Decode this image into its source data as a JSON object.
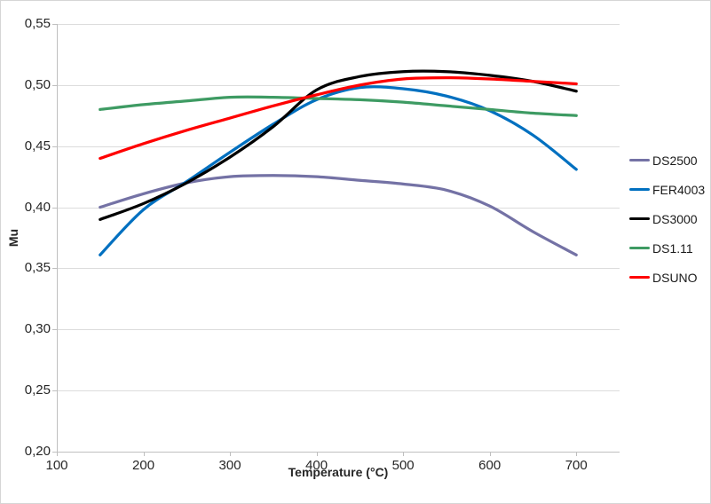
{
  "window": {
    "background": "#ffffff",
    "border_color": "#d6d6d6"
  },
  "colors": {
    "gridline": "#dcdcdc",
    "axis_line": "#bfbfbf",
    "tick_mark": "#bfbfbf",
    "tick_text": "#262626",
    "legend_text": "#1a1a1a"
  },
  "chart_data": {
    "type": "line",
    "xlabel": "Temperature (°C)",
    "ylabel": "Mu",
    "xlim": [
      100,
      750
    ],
    "ylim": [
      0.2,
      0.55
    ],
    "x_ticks": [
      100,
      200,
      300,
      400,
      500,
      600,
      700
    ],
    "y_ticks": [
      0.2,
      0.25,
      0.3,
      0.35,
      0.4,
      0.45,
      0.5,
      0.55
    ],
    "y_tick_labels": [
      "0,20",
      "0,25",
      "0,30",
      "0,35",
      "0,40",
      "0,45",
      "0,50",
      "0,55"
    ],
    "decimal_separator": ",",
    "grid": true,
    "legend_position": "right",
    "line_width": 3.25,
    "smooth": true,
    "x": [
      150,
      200,
      250,
      300,
      350,
      400,
      450,
      500,
      550,
      600,
      650,
      700
    ],
    "series": [
      {
        "name": "DS2500",
        "color": "#7472A5",
        "values": [
          0.4,
          0.411,
          0.42,
          0.425,
          0.426,
          0.425,
          0.422,
          0.419,
          0.414,
          0.401,
          0.38,
          0.361
        ]
      },
      {
        "name": "FER4003",
        "color": "#0070C0",
        "values": [
          0.361,
          0.398,
          0.421,
          0.445,
          0.468,
          0.488,
          0.498,
          0.497,
          0.491,
          0.479,
          0.459,
          0.431
        ]
      },
      {
        "name": "DS3000",
        "color": "#000000",
        "values": [
          0.39,
          0.403,
          0.42,
          0.441,
          0.466,
          0.496,
          0.507,
          0.511,
          0.511,
          0.508,
          0.503,
          0.495
        ]
      },
      {
        "name": "DS1.11",
        "color": "#3E9B63",
        "values": [
          0.48,
          0.484,
          0.487,
          0.49,
          0.49,
          0.489,
          0.488,
          0.486,
          0.483,
          0.48,
          0.477,
          0.475
        ]
      },
      {
        "name": "DSUNO",
        "color": "#FF0000",
        "values": [
          0.44,
          0.452,
          0.463,
          0.473,
          0.483,
          0.492,
          0.5,
          0.505,
          0.506,
          0.505,
          0.503,
          0.501
        ]
      }
    ]
  }
}
